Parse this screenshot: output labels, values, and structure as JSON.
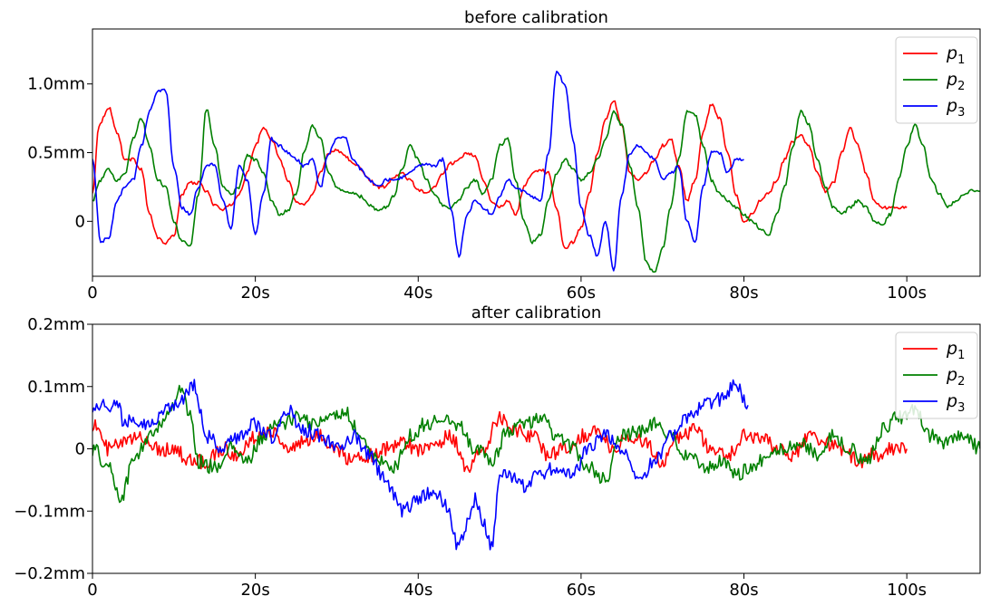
{
  "chart_data": [
    {
      "type": "line",
      "title": "before calibration",
      "xlabel": "",
      "ylabel": "",
      "xlim": [
        0,
        109
      ],
      "ylim": [
        -0.4,
        1.4
      ],
      "xticks": [
        0,
        20,
        40,
        60,
        80,
        100
      ],
      "xtick_labels": [
        "0",
        "20s",
        "40s",
        "60s",
        "80s",
        "100s"
      ],
      "yticks": [
        0,
        0.5,
        1.0
      ],
      "ytick_labels": [
        "0",
        "0.5mm",
        "1.0mm"
      ],
      "grid": false,
      "legend_position": "top-right",
      "noise_amplitude": 0.012,
      "series": [
        {
          "name": "p",
          "name_sub": "1",
          "color": "#ff0000",
          "x": [
            0,
            0.8,
            2,
            3,
            4,
            5,
            6,
            7,
            8,
            9,
            10,
            11,
            12,
            13,
            14,
            15,
            16,
            17,
            18,
            19,
            20,
            21,
            22,
            23,
            24,
            25,
            26,
            27,
            28,
            29,
            30,
            31,
            32,
            33,
            34,
            35,
            36,
            37,
            38,
            39,
            40,
            41,
            42,
            43,
            44,
            45,
            46,
            47,
            48,
            49,
            50,
            51,
            52,
            53,
            54,
            55,
            56,
            57,
            58,
            59,
            60,
            61,
            62,
            63,
            64,
            65,
            66,
            67,
            68,
            69,
            70,
            71,
            72,
            73,
            74,
            75,
            76,
            77,
            78,
            79,
            80,
            81,
            82,
            83,
            84,
            85,
            86,
            87,
            88,
            89,
            90,
            91,
            92,
            93,
            94,
            95,
            96,
            97,
            98,
            99,
            100
          ],
          "y": [
            0.2,
            0.7,
            0.83,
            0.65,
            0.45,
            0.45,
            0.38,
            0.05,
            -0.12,
            -0.16,
            -0.1,
            0.2,
            0.28,
            0.28,
            0.22,
            0.12,
            0.08,
            0.12,
            0.2,
            0.35,
            0.55,
            0.68,
            0.6,
            0.45,
            0.3,
            0.15,
            0.12,
            0.2,
            0.35,
            0.5,
            0.52,
            0.48,
            0.42,
            0.38,
            0.3,
            0.25,
            0.25,
            0.32,
            0.35,
            0.3,
            0.23,
            0.2,
            0.25,
            0.35,
            0.42,
            0.45,
            0.5,
            0.48,
            0.3,
            0.15,
            0.1,
            0.15,
            0.05,
            0.25,
            0.35,
            0.38,
            0.35,
            0.1,
            -0.2,
            -0.15,
            -0.05,
            0.2,
            0.5,
            0.75,
            0.88,
            0.7,
            0.35,
            0.3,
            0.35,
            0.45,
            0.55,
            0.6,
            0.4,
            0.15,
            0.3,
            0.65,
            0.85,
            0.75,
            0.5,
            0.2,
            0.0,
            0.05,
            0.15,
            0.2,
            0.3,
            0.45,
            0.58,
            0.62,
            0.55,
            0.35,
            0.22,
            0.28,
            0.5,
            0.68,
            0.55,
            0.35,
            0.15,
            0.1,
            0.1,
            0.1,
            0.1
          ]
        },
        {
          "name": "p",
          "name_sub": "2",
          "color": "#008000",
          "x": [
            0,
            1,
            2,
            3,
            4,
            5,
            6,
            7,
            8,
            9,
            10,
            11,
            12,
            13,
            14,
            15,
            16,
            17,
            18,
            19,
            20,
            21,
            22,
            23,
            24,
            25,
            26,
            27,
            28,
            29,
            30,
            31,
            32,
            33,
            34,
            35,
            36,
            37,
            38,
            39,
            40,
            41,
            42,
            43,
            44,
            45,
            46,
            47,
            48,
            49,
            50,
            51,
            52,
            53,
            54,
            55,
            56,
            57,
            58,
            59,
            60,
            61,
            62,
            63,
            64,
            65,
            66,
            67,
            68,
            69,
            70,
            71,
            72,
            73,
            74,
            75,
            76,
            77,
            78,
            79,
            80,
            81,
            82,
            83,
            84,
            85,
            86,
            87,
            88,
            89,
            90,
            91,
            92,
            93,
            94,
            95,
            96,
            97,
            98,
            99,
            100,
            101,
            102,
            103,
            104,
            105,
            106,
            107,
            108,
            109
          ],
          "y": [
            0.15,
            0.3,
            0.38,
            0.3,
            0.35,
            0.6,
            0.75,
            0.55,
            0.3,
            0.25,
            0.0,
            -0.15,
            -0.18,
            0.2,
            0.82,
            0.55,
            0.25,
            0.2,
            0.25,
            0.48,
            0.45,
            0.35,
            0.15,
            0.05,
            0.08,
            0.2,
            0.5,
            0.7,
            0.6,
            0.35,
            0.25,
            0.22,
            0.2,
            0.18,
            0.12,
            0.08,
            0.1,
            0.18,
            0.38,
            0.55,
            0.45,
            0.3,
            0.2,
            0.12,
            0.1,
            0.15,
            0.25,
            0.3,
            0.2,
            0.3,
            0.55,
            0.6,
            0.3,
            0.0,
            -0.15,
            -0.1,
            0.15,
            0.35,
            0.45,
            0.38,
            0.3,
            0.35,
            0.45,
            0.6,
            0.8,
            0.7,
            0.4,
            0.1,
            -0.3,
            -0.38,
            -0.2,
            0.1,
            0.45,
            0.8,
            0.78,
            0.55,
            0.3,
            0.2,
            0.15,
            0.1,
            0.05,
            0.0,
            -0.05,
            -0.1,
            0.05,
            0.25,
            0.55,
            0.8,
            0.7,
            0.45,
            0.25,
            0.1,
            0.05,
            0.1,
            0.15,
            0.1,
            0.0,
            -0.02,
            0.05,
            0.3,
            0.55,
            0.7,
            0.55,
            0.3,
            0.2,
            0.1,
            0.15,
            0.2,
            0.22,
            0.22
          ]
        },
        {
          "name": "p",
          "name_sub": "3",
          "color": "#0000ff",
          "x": [
            0,
            1,
            2,
            3,
            4,
            5,
            6,
            7,
            8,
            9,
            10,
            11,
            12,
            13,
            14,
            15,
            16,
            17,
            18,
            19,
            20,
            21,
            22,
            23,
            24,
            25,
            26,
            27,
            28,
            29,
            30,
            31,
            32,
            33,
            34,
            35,
            36,
            37,
            38,
            39,
            40,
            41,
            42,
            43,
            44,
            45,
            46,
            47,
            48,
            49,
            50,
            51,
            52,
            53,
            54,
            55,
            56,
            57,
            58,
            59,
            60,
            61,
            62,
            63,
            64,
            65,
            66,
            67,
            68,
            69,
            70,
            71,
            72,
            73,
            74,
            75,
            76,
            77,
            78,
            79,
            80
          ],
          "y": [
            0.45,
            -0.15,
            -0.12,
            0.15,
            0.25,
            0.3,
            0.55,
            0.8,
            0.95,
            0.95,
            0.4,
            0.1,
            0.05,
            0.25,
            0.4,
            0.42,
            0.15,
            -0.05,
            0.4,
            0.3,
            -0.1,
            0.2,
            0.6,
            0.55,
            0.5,
            0.45,
            0.4,
            0.45,
            0.25,
            0.5,
            0.6,
            0.62,
            0.45,
            0.38,
            0.3,
            0.25,
            0.3,
            0.3,
            0.32,
            0.35,
            0.4,
            0.42,
            0.4,
            0.45,
            0.1,
            -0.25,
            0.05,
            0.15,
            0.1,
            0.05,
            0.18,
            0.3,
            0.25,
            0.22,
            0.18,
            0.15,
            0.5,
            1.1,
            1.0,
            0.6,
            0.1,
            -0.1,
            -0.25,
            0.0,
            -0.35,
            0.2,
            0.5,
            0.55,
            0.5,
            0.45,
            0.3,
            0.35,
            0.4,
            0.0,
            -0.15,
            0.25,
            0.5,
            0.5,
            0.35,
            0.45,
            0.45
          ]
        }
      ]
    },
    {
      "type": "line",
      "title": "after calibration",
      "xlabel": "",
      "ylabel": "",
      "xlim": [
        0,
        109
      ],
      "ylim": [
        -0.2,
        0.2
      ],
      "xticks": [
        0,
        20,
        40,
        60,
        80,
        100
      ],
      "xtick_labels": [
        "0",
        "20s",
        "40s",
        "60s",
        "80s",
        "100s"
      ],
      "yticks": [
        -0.2,
        -0.1,
        0,
        0.1,
        0.2
      ],
      "ytick_labels": [
        "−0.2mm",
        "−0.1mm",
        "0",
        "0.1mm",
        "0.2mm"
      ],
      "grid": false,
      "legend_position": "top-right",
      "noise_amplitude": 0.012,
      "series": [
        {
          "name": "p",
          "name_sub": "1",
          "color": "#ff0000",
          "x": [
            0,
            2,
            4,
            6,
            8,
            10,
            12,
            14,
            16,
            18,
            20,
            22,
            24,
            26,
            28,
            30,
            32,
            34,
            36,
            38,
            40,
            42,
            44,
            46,
            48,
            50,
            52,
            54,
            56,
            58,
            60,
            62,
            64,
            66,
            68,
            70,
            72,
            74,
            76,
            78,
            80,
            82,
            84,
            86,
            88,
            90,
            92,
            94,
            96,
            98,
            100
          ],
          "y": [
            0.04,
            0.0,
            0.01,
            0.02,
            0.0,
            0.0,
            -0.02,
            -0.02,
            0.0,
            -0.01,
            0.02,
            0.03,
            0.0,
            0.01,
            0.02,
            0.0,
            -0.02,
            -0.01,
            0.0,
            0.01,
            0.0,
            0.01,
            0.02,
            -0.03,
            0.0,
            0.05,
            0.03,
            0.02,
            -0.01,
            0.0,
            0.02,
            0.03,
            0.0,
            0.02,
            0.01,
            -0.02,
            0.02,
            0.03,
            0.0,
            -0.01,
            0.02,
            0.02,
            0.0,
            -0.01,
            0.02,
            0.01,
            0.0,
            -0.02,
            -0.01,
            0.0,
            0.0
          ]
        },
        {
          "name": "p",
          "name_sub": "2",
          "color": "#008000",
          "x": [
            0,
            2,
            3.5,
            5,
            7,
            9,
            11,
            12,
            13,
            15,
            17,
            19,
            21,
            23,
            25,
            27,
            29,
            31,
            33,
            35,
            37,
            39,
            41,
            43,
            45,
            47,
            49,
            51,
            53,
            55,
            57,
            59,
            61,
            63,
            65,
            67,
            69,
            71,
            73,
            75,
            77,
            79,
            81,
            83,
            85,
            87,
            89,
            91,
            93,
            95,
            97,
            99,
            101,
            103,
            105,
            107,
            109
          ],
          "y": [
            0.0,
            -0.03,
            -0.08,
            -0.02,
            0.02,
            0.05,
            0.1,
            0.05,
            -0.02,
            -0.03,
            0.0,
            -0.02,
            0.02,
            0.04,
            0.05,
            0.04,
            0.05,
            0.06,
            0.02,
            -0.02,
            -0.03,
            0.02,
            0.04,
            0.05,
            0.04,
            0.0,
            -0.02,
            0.03,
            0.04,
            0.05,
            0.02,
            0.0,
            -0.03,
            -0.05,
            0.02,
            0.03,
            0.04,
            0.02,
            -0.01,
            -0.03,
            -0.02,
            -0.04,
            -0.03,
            -0.01,
            0.0,
            0.01,
            -0.01,
            0.02,
            0.0,
            -0.02,
            0.03,
            0.05,
            0.06,
            0.02,
            0.01,
            0.02,
            0.0
          ]
        },
        {
          "name": "p",
          "name_sub": "3",
          "color": "#0000ff",
          "x": [
            0,
            2,
            3,
            4,
            5,
            7,
            9,
            11,
            12.5,
            14,
            16,
            18,
            20,
            22,
            24,
            26,
            28,
            30,
            32,
            34,
            36,
            38,
            40,
            42,
            43.5,
            45,
            46,
            47,
            48,
            49,
            50,
            51,
            53,
            55,
            57,
            59,
            61,
            63,
            65,
            67,
            69,
            71,
            73,
            75,
            77,
            79,
            80.5
          ],
          "y": [
            0.07,
            0.07,
            0.07,
            0.04,
            0.05,
            0.04,
            0.06,
            0.08,
            0.1,
            0.02,
            0.0,
            0.02,
            0.04,
            0.02,
            0.06,
            0.03,
            0.02,
            0.0,
            0.02,
            -0.01,
            -0.05,
            -0.1,
            -0.08,
            -0.07,
            -0.09,
            -0.16,
            -0.12,
            -0.08,
            -0.12,
            -0.16,
            -0.05,
            -0.04,
            -0.06,
            -0.04,
            -0.03,
            -0.04,
            0.0,
            0.02,
            0.0,
            -0.05,
            -0.02,
            0.02,
            0.05,
            0.07,
            0.08,
            0.1,
            0.07
          ]
        }
      ]
    }
  ]
}
